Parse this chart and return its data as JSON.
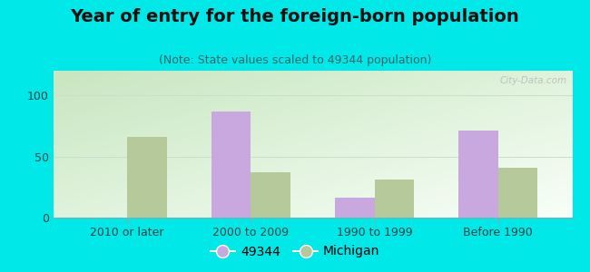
{
  "title": "Year of entry for the foreign-born population",
  "subtitle": "(Note: State values scaled to 49344 population)",
  "categories": [
    "2010 or later",
    "2000 to 2009",
    "1990 to 1999",
    "Before 1990"
  ],
  "values_49344": [
    0,
    87,
    16,
    71
  ],
  "values_michigan": [
    66,
    37,
    31,
    41
  ],
  "bar_color_49344": "#c9a8e0",
  "bar_color_michigan": "#b5c99a",
  "background_color": "#00e8e8",
  "ylim": [
    0,
    120
  ],
  "yticks": [
    0,
    50,
    100
  ],
  "legend_labels": [
    "49344",
    "Michigan"
  ],
  "bar_width": 0.32,
  "title_fontsize": 14,
  "subtitle_fontsize": 9,
  "tick_fontsize": 9,
  "legend_fontsize": 10,
  "grad_color_bottom_left": "#c8e6c0",
  "grad_color_top_right": "#f8fff8",
  "watermark_text": "City-Data.com",
  "title_color": "#111111",
  "subtitle_color": "#336666",
  "tick_color": "#224444"
}
